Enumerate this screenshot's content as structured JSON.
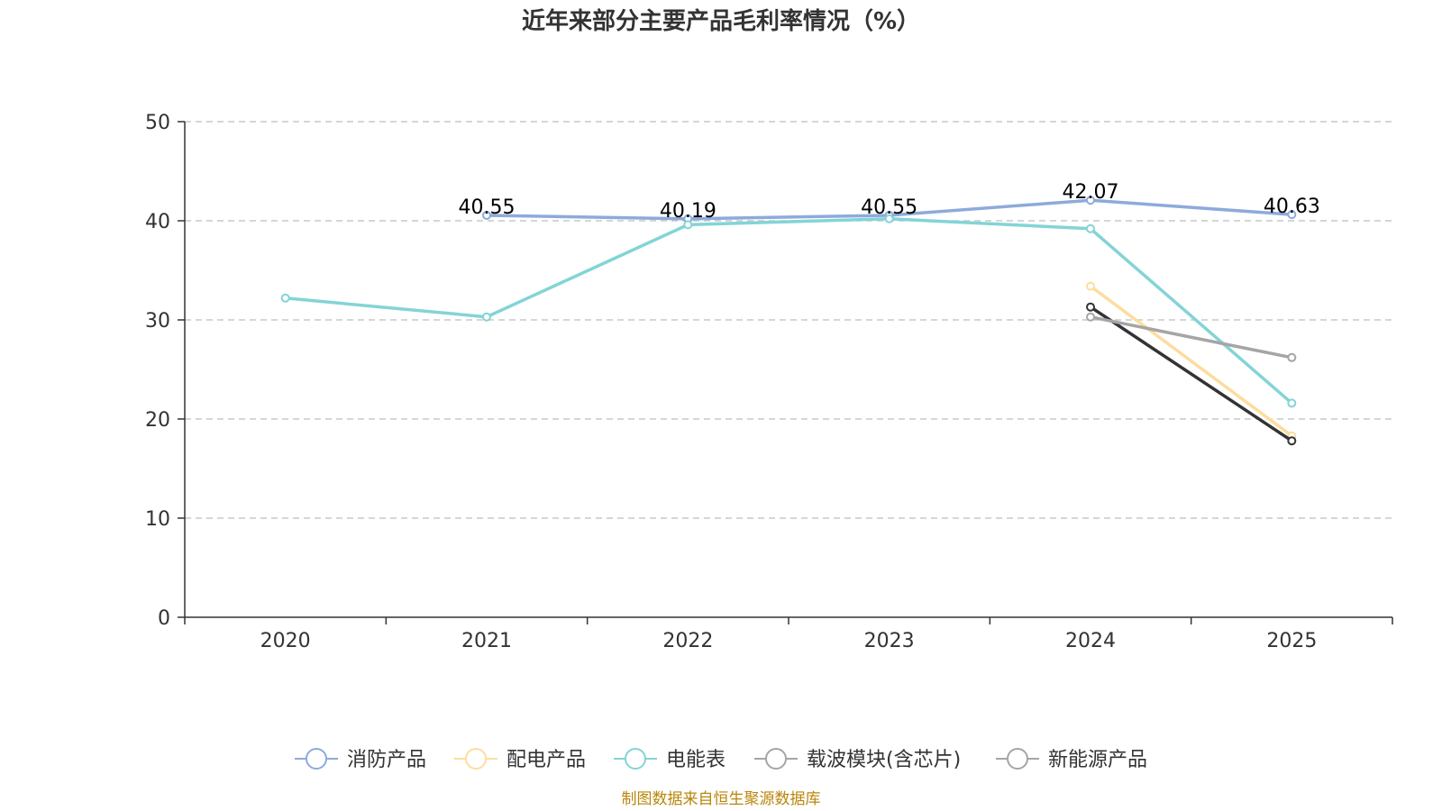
{
  "chart_data": {
    "type": "line",
    "title": "近年来部分主要产品毛利率情况（%）",
    "xlabel": "",
    "ylabel": "",
    "categories": [
      "2020",
      "2021",
      "2022",
      "2023",
      "2024",
      "2025"
    ],
    "ylim": [
      0,
      50
    ],
    "yticks": [
      0,
      10,
      20,
      30,
      40,
      50
    ],
    "grid": true,
    "legend_position": "bottom",
    "series": [
      {
        "name": "消防产品",
        "color": "#8eaadb",
        "values": [
          null,
          40.55,
          40.19,
          40.55,
          42.07,
          40.63
        ],
        "labels": [
          null,
          "40.55",
          "40.19",
          "40.55",
          "42.07",
          "40.63"
        ]
      },
      {
        "name": "配电产品",
        "color": "#fddd9d",
        "values": [
          null,
          null,
          null,
          null,
          33.4,
          18.3
        ],
        "labels": null
      },
      {
        "name": "电能表",
        "color": "#83d4d6",
        "values": [
          32.2,
          30.3,
          39.6,
          40.2,
          39.2,
          21.6
        ],
        "labels": null
      },
      {
        "name": "载波模块(含芯片)",
        "color": "#333333",
        "values": [
          null,
          null,
          null,
          null,
          31.3,
          17.8
        ],
        "labels": null
      },
      {
        "name": "新能源产品",
        "color": "#a5a5a5",
        "values": [
          null,
          null,
          null,
          null,
          30.3,
          26.2
        ],
        "labels": null
      }
    ],
    "source": "制图数据来自恒生聚源数据库"
  }
}
